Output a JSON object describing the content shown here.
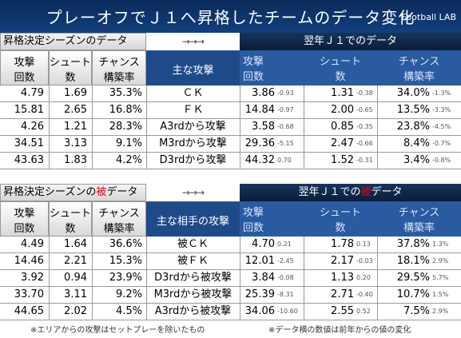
{
  "title": "プレーオフでＪ１へ昇格したチームのデータ変化",
  "brand": "Football LAB",
  "arrow": "→→→",
  "section1": {
    "left": "昇格決定シーズンのデータ",
    "right": "翌年Ｊ１でのデータ",
    "headers": {
      "left": [
        [
          "攻撃",
          "回数"
        ],
        [
          "シュート",
          "数"
        ],
        [
          "チャンス",
          "構築率"
        ]
      ],
      "mid": "主な攻撃",
      "right": [
        [
          "攻撃",
          "回数"
        ],
        [
          "シュート",
          "数"
        ],
        [
          "チャンス",
          "構築率"
        ]
      ]
    },
    "rows": [
      {
        "a": "4.79",
        "s": "1.69",
        "c": "35.3%",
        "label": "ＣＫ",
        "na": "3.86",
        "da": "-0.93",
        "ns": "1.31",
        "ds": "-0.38",
        "nc": "34.0%",
        "dc": "-1.3%"
      },
      {
        "a": "15.81",
        "s": "2.65",
        "c": "16.8%",
        "label": "ＦＫ",
        "na": "14.84",
        "da": "-0.97",
        "ns": "2.00",
        "ds": "-0.65",
        "nc": "13.5%",
        "dc": "-3.3%"
      },
      {
        "a": "4.26",
        "s": "1.21",
        "c": "28.3%",
        "label": "A3rdから攻撃",
        "na": "3.58",
        "da": "-0.68",
        "ns": "0.85",
        "ds": "-0.35",
        "nc": "23.8%",
        "dc": "-4.5%"
      },
      {
        "a": "34.51",
        "s": "3.13",
        "c": "9.1%",
        "label": "M3rdから攻撃",
        "na": "29.36",
        "da": "-5.15",
        "ns": "2.47",
        "ds": "-0.66",
        "nc": "8.4%",
        "dc": "-0.7%"
      },
      {
        "a": "43.63",
        "s": "1.83",
        "c": "4.2%",
        "label": "D3rdから攻撃",
        "na": "44.32",
        "da": "0.70",
        "ns": "1.52",
        "ds": "-0.31",
        "nc": "3.4%",
        "dc": "-0.8%"
      }
    ]
  },
  "section2": {
    "left_pre": "昇格決定シーズンの",
    "left_red": "被",
    "left_post": "データ",
    "right_pre": "翌年Ｊ１での",
    "right_red": "被",
    "right_post": "データ",
    "headers": {
      "left": [
        [
          "攻撃",
          "回数"
        ],
        [
          "シュート",
          "数"
        ],
        [
          "チャンス",
          "構築率"
        ]
      ],
      "mid": "主な相手の攻撃",
      "right": [
        [
          "攻撃",
          "回数"
        ],
        [
          "シュート",
          "数"
        ],
        [
          "チャンス",
          "構築率"
        ]
      ]
    },
    "rows": [
      {
        "a": "4.49",
        "s": "1.64",
        "c": "36.6%",
        "label": "被ＣＫ",
        "na": "4.70",
        "da": "0.21",
        "ns": "1.78",
        "ds": "0.13",
        "nc": "37.8%",
        "dc": "1.3%"
      },
      {
        "a": "14.46",
        "s": "2.21",
        "c": "15.3%",
        "label": "被ＦＫ",
        "na": "12.01",
        "da": "-2.45",
        "ns": "2.17",
        "ds": "-0.03",
        "nc": "18.1%",
        "dc": "2.9%"
      },
      {
        "a": "3.92",
        "s": "0.94",
        "c": "23.9%",
        "label": "D3rdから被攻撃",
        "na": "3.84",
        "da": "-0.08",
        "ns": "1.13",
        "ds": "0.20",
        "nc": "29.5%",
        "dc": "5.7%"
      },
      {
        "a": "33.70",
        "s": "3.11",
        "c": "9.2%",
        "label": "M3rdから被攻撃",
        "na": "25.39",
        "da": "-8.31",
        "ns": "2.71",
        "ds": "-0.40",
        "nc": "10.7%",
        "dc": "1.5%"
      },
      {
        "a": "44.65",
        "s": "2.02",
        "c": "4.5%",
        "label": "A3rdから被攻撃",
        "na": "34.06",
        "da": "-10.60",
        "ns": "2.55",
        "ds": "0.52",
        "nc": "7.5%",
        "dc": "2.9%"
      }
    ]
  },
  "footnote_left": "※エリアからの攻撃はセットプレーを除いたもの",
  "footnote_right": "※データ横の数値は前年からの値の変化"
}
